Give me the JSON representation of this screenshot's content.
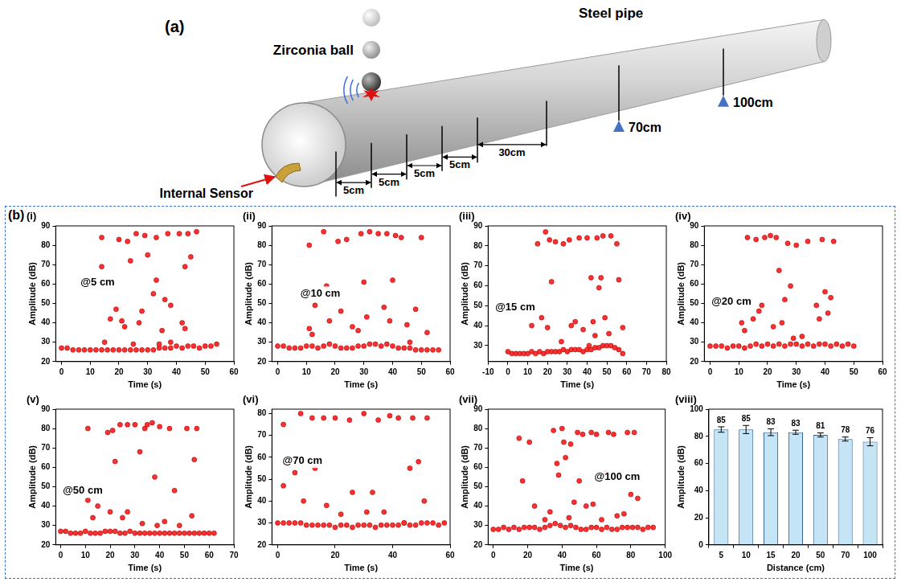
{
  "diagram": {
    "label": "(a)",
    "ball": "Zirconia ball",
    "pipe": "Steel pipe",
    "sensor": "Internal Sensor",
    "spacings": [
      "5cm",
      "5cm",
      "5cm",
      "5cm",
      "30cm"
    ],
    "positions": [
      "70cm",
      "100cm"
    ]
  },
  "panel_label": "(b)",
  "chart_data": [
    {
      "type": "scatter",
      "panel_label": "(i)",
      "annotation": "@5 cm",
      "x_label": "Time (s)",
      "y_label": "Amplitude (dB)",
      "xlim": [
        -2,
        60
      ],
      "xticks": [
        0,
        10,
        20,
        30,
        40,
        50,
        60
      ],
      "ylim": [
        20,
        90
      ],
      "yticks": [
        20,
        30,
        40,
        50,
        60,
        70,
        80,
        90
      ],
      "color": "#ff3030",
      "marker": "circle",
      "grid": false,
      "x": [
        0,
        2,
        4,
        6,
        8,
        10,
        12,
        14,
        16,
        18,
        20,
        22,
        24,
        26,
        28,
        30,
        32,
        34,
        36,
        38,
        40,
        42,
        44,
        46,
        48,
        50,
        52,
        54,
        14,
        14,
        15,
        17,
        19,
        20,
        21,
        22,
        23,
        24,
        25,
        26,
        27,
        28,
        29,
        30,
        32,
        33,
        33,
        34,
        35,
        36,
        37,
        38,
        38,
        41,
        42,
        43,
        43,
        44,
        45,
        47
      ],
      "values": [
        27,
        27,
        26,
        26,
        26,
        26,
        26,
        26,
        26,
        26,
        26,
        26,
        26,
        26,
        26,
        26,
        26,
        27,
        27,
        27,
        28,
        27,
        28,
        28,
        27,
        28,
        28,
        29,
        84,
        69,
        30,
        42,
        47,
        83,
        41,
        38,
        82,
        72,
        29,
        86,
        40,
        46,
        85,
        75,
        55,
        62,
        84,
        29,
        36,
        52,
        86,
        49,
        30,
        86,
        40,
        69,
        37,
        86,
        74,
        87
      ]
    },
    {
      "type": "scatter",
      "panel_label": "(ii)",
      "annotation": "@10 cm",
      "x_label": "Time (s)",
      "y_label": "Amplitude (dB)",
      "xlim": [
        -2,
        60
      ],
      "xticks": [
        0,
        10,
        20,
        30,
        40,
        50,
        60
      ],
      "ylim": [
        20,
        90
      ],
      "yticks": [
        20,
        30,
        40,
        50,
        60,
        70,
        80,
        90
      ],
      "color": "#ff3030",
      "marker": "circle",
      "grid": false,
      "x": [
        0,
        2,
        4,
        6,
        8,
        10,
        12,
        14,
        16,
        18,
        20,
        22,
        24,
        26,
        28,
        30,
        32,
        34,
        36,
        38,
        40,
        42,
        44,
        46,
        48,
        50,
        52,
        54,
        56,
        11,
        11,
        12,
        13,
        16,
        17,
        18,
        21,
        22,
        24,
        26,
        28,
        29,
        30,
        31,
        32,
        35,
        37,
        38,
        39,
        40,
        41,
        43,
        45,
        46,
        48,
        50,
        52
      ],
      "values": [
        28,
        28,
        27,
        27,
        27,
        28,
        28,
        27,
        28,
        29,
        28,
        27,
        27,
        27,
        28,
        28,
        29,
        29,
        28,
        29,
        28,
        27,
        27,
        27,
        26,
        26,
        26,
        26,
        26,
        80,
        37,
        34,
        49,
        87,
        59,
        41,
        82,
        46,
        83,
        38,
        36,
        86,
        61,
        43,
        87,
        86,
        48,
        86,
        41,
        62,
        85,
        84,
        39,
        30,
        47,
        84,
        35
      ]
    },
    {
      "type": "scatter",
      "panel_label": "(iii)",
      "annotation": "@15 cm",
      "x_label": "Time (s)",
      "y_label": "Amplitude (dB)",
      "xlim": [
        -10,
        80
      ],
      "xticks": [
        -10,
        0,
        10,
        20,
        30,
        40,
        50,
        60,
        70,
        80
      ],
      "ylim": [
        22,
        90
      ],
      "yticks": [
        30,
        40,
        50,
        60,
        70,
        80,
        90
      ],
      "color": "#ff3030",
      "marker": "circle",
      "grid": false,
      "x": [
        0,
        2,
        4,
        6,
        8,
        10,
        12,
        14,
        16,
        18,
        20,
        22,
        24,
        26,
        28,
        30,
        32,
        34,
        36,
        38,
        40,
        42,
        44,
        46,
        48,
        50,
        52,
        54,
        56,
        58,
        12,
        15,
        17,
        19,
        20,
        21,
        22,
        24,
        27,
        28,
        31,
        32,
        34,
        36,
        38,
        40,
        41,
        42,
        43,
        44,
        45,
        46,
        47,
        48,
        49,
        51,
        52,
        55,
        56,
        58
      ],
      "values": [
        27,
        26,
        26,
        26,
        26,
        26,
        27,
        26,
        27,
        26,
        27,
        27,
        27,
        27,
        28,
        27,
        28,
        28,
        28,
        27,
        28,
        28,
        29,
        29,
        30,
        30,
        30,
        29,
        28,
        26,
        40,
        81,
        44,
        87,
        39,
        83,
        62,
        82,
        32,
        81,
        83,
        40,
        42,
        84,
        38,
        84,
        30,
        64,
        42,
        35,
        84,
        59,
        64,
        85,
        44,
        36,
        85,
        81,
        63,
        39
      ]
    },
    {
      "type": "scatter",
      "panel_label": "(iv)",
      "annotation": "@20 cm",
      "x_label": "Time (s)",
      "y_label": "Amplitude (dB)",
      "xlim": [
        -2,
        60
      ],
      "xticks": [
        0,
        10,
        20,
        30,
        40,
        50,
        60
      ],
      "ylim": [
        20,
        90
      ],
      "yticks": [
        20,
        30,
        40,
        50,
        60,
        70,
        80,
        90
      ],
      "color": "#ff3030",
      "marker": "circle",
      "grid": false,
      "x": [
        0,
        2,
        4,
        6,
        8,
        10,
        12,
        14,
        16,
        18,
        20,
        22,
        24,
        26,
        28,
        30,
        32,
        34,
        36,
        38,
        40,
        42,
        44,
        46,
        48,
        50,
        11,
        12,
        13,
        15,
        16,
        17,
        18,
        19,
        21,
        22,
        23,
        24,
        25,
        26,
        27,
        28,
        29,
        30,
        32,
        34,
        37,
        38,
        39,
        40,
        41,
        42,
        43
      ],
      "values": [
        28,
        28,
        28,
        27,
        28,
        28,
        27,
        28,
        29,
        28,
        29,
        28,
        29,
        28,
        29,
        29,
        28,
        29,
        28,
        29,
        29,
        28,
        29,
        28,
        29,
        28,
        40,
        36,
        84,
        42,
        83,
        46,
        49,
        84,
        85,
        38,
        84,
        67,
        40,
        52,
        81,
        59,
        32,
        80,
        33,
        82,
        49,
        42,
        83,
        56,
        45,
        53,
        82
      ]
    },
    {
      "type": "scatter",
      "panel_label": "(v)",
      "annotation": "@50 cm",
      "x_label": "Time (s)",
      "y_label": "Amplitude (dB)",
      "xlim": [
        -2,
        70
      ],
      "xticks": [
        0,
        10,
        20,
        30,
        40,
        50,
        60,
        70
      ],
      "ylim": [
        20,
        90
      ],
      "yticks": [
        20,
        30,
        40,
        50,
        60,
        70,
        80,
        90
      ],
      "color": "#ff3030",
      "marker": "circle",
      "grid": false,
      "x": [
        0,
        2,
        4,
        6,
        8,
        10,
        12,
        14,
        16,
        18,
        20,
        22,
        24,
        26,
        28,
        30,
        32,
        34,
        36,
        38,
        40,
        42,
        44,
        46,
        48,
        50,
        52,
        54,
        56,
        58,
        60,
        62,
        11,
        11,
        13,
        15,
        19,
        20,
        21,
        22,
        24,
        25,
        27,
        27,
        30,
        32,
        33,
        34,
        35,
        37,
        38,
        39,
        40,
        42,
        44,
        46,
        48,
        51,
        53,
        54,
        55
      ],
      "values": [
        27,
        27,
        26,
        26,
        26,
        27,
        26,
        26,
        26,
        27,
        27,
        27,
        26,
        26,
        27,
        26,
        26,
        26,
        26,
        26,
        26,
        26,
        26,
        26,
        26,
        26,
        26,
        26,
        26,
        26,
        26,
        26,
        80,
        43,
        34,
        40,
        78,
        37,
        79,
        63,
        82,
        34,
        37,
        82,
        82,
        68,
        31,
        80,
        82,
        83,
        55,
        30,
        81,
        32,
        80,
        48,
        30,
        80,
        35,
        64,
        80
      ]
    },
    {
      "type": "scatter",
      "panel_label": "(vi)",
      "annotation": "@70 cm",
      "x_label": "Time (s)",
      "y_label": "Amplitude (dB)",
      "xlim": [
        -2,
        60
      ],
      "xticks": [
        0,
        20,
        40,
        60
      ],
      "ylim": [
        20,
        82
      ],
      "yticks": [
        20,
        30,
        40,
        50,
        60,
        70,
        80
      ],
      "color": "#ff3030",
      "marker": "circle",
      "grid": false,
      "x": [
        0,
        2,
        4,
        6,
        8,
        10,
        12,
        14,
        16,
        18,
        20,
        22,
        24,
        26,
        28,
        30,
        32,
        34,
        36,
        38,
        40,
        42,
        44,
        46,
        48,
        50,
        52,
        54,
        56,
        58,
        2,
        2,
        6,
        8,
        9,
        12,
        13,
        16,
        17,
        20,
        22,
        25,
        26,
        30,
        31,
        33,
        35,
        37,
        39,
        42,
        44,
        46,
        47,
        49,
        51,
        52
      ],
      "values": [
        30,
        30,
        30,
        30,
        30,
        29,
        29,
        29,
        29,
        29,
        28,
        29,
        29,
        28,
        29,
        29,
        29,
        28,
        29,
        29,
        29,
        29,
        30,
        29,
        29,
        30,
        30,
        30,
        29,
        30,
        75,
        47,
        53,
        80,
        40,
        78,
        55,
        78,
        38,
        78,
        34,
        77,
        44,
        80,
        35,
        44,
        77,
        35,
        79,
        78,
        30,
        55,
        78,
        58,
        40,
        78
      ]
    },
    {
      "type": "scatter",
      "panel_label": "(vii)",
      "annotation": "@100 cm",
      "x_label": "Time (s)",
      "y_label": "Amplitude (dB)",
      "xlim": [
        -3,
        100
      ],
      "xticks": [
        0,
        20,
        40,
        60,
        80,
        100
      ],
      "ylim": [
        20,
        90
      ],
      "yticks": [
        20,
        30,
        40,
        50,
        60,
        70,
        80,
        90
      ],
      "color": "#ff3030",
      "marker": "circle",
      "grid": false,
      "x": [
        0,
        3,
        6,
        9,
        12,
        15,
        18,
        21,
        24,
        27,
        30,
        33,
        36,
        39,
        42,
        45,
        48,
        51,
        54,
        57,
        60,
        63,
        66,
        69,
        72,
        75,
        78,
        81,
        84,
        87,
        90,
        93,
        15,
        17,
        21,
        24,
        30,
        33,
        35,
        37,
        38,
        40,
        41,
        42,
        44,
        45,
        47,
        49,
        50,
        52,
        54,
        57,
        58,
        60,
        63,
        65,
        67,
        70,
        72,
        76,
        78,
        80,
        82,
        84
      ],
      "values": [
        28,
        28,
        29,
        28,
        29,
        28,
        29,
        29,
        29,
        28,
        29,
        30,
        31,
        30,
        29,
        30,
        29,
        28,
        28,
        29,
        29,
        28,
        29,
        28,
        28,
        29,
        29,
        29,
        29,
        28,
        29,
        29,
        75,
        53,
        73,
        40,
        33,
        37,
        79,
        62,
        56,
        80,
        73,
        65,
        34,
        72,
        42,
        78,
        53,
        77,
        40,
        78,
        41,
        77,
        33,
        57,
        78,
        77,
        35,
        36,
        78,
        46,
        78,
        44
      ]
    },
    {
      "type": "bar",
      "panel_label": "(viii)",
      "x_label": "Distance (cm)",
      "y_label": "Amplitude (dB)",
      "categories": [
        "5",
        "10",
        "15",
        "20",
        "50",
        "70",
        "100"
      ],
      "values": [
        85,
        85,
        83,
        83,
        81,
        78,
        76
      ],
      "errors": [
        2,
        3,
        2.5,
        1.5,
        1.5,
        1.5,
        3
      ],
      "ylim": [
        0,
        100
      ],
      "yticks": [
        0,
        20,
        40,
        60,
        80,
        100
      ],
      "color": "#c5e4f5",
      "grid": false,
      "data_labels": true
    }
  ]
}
